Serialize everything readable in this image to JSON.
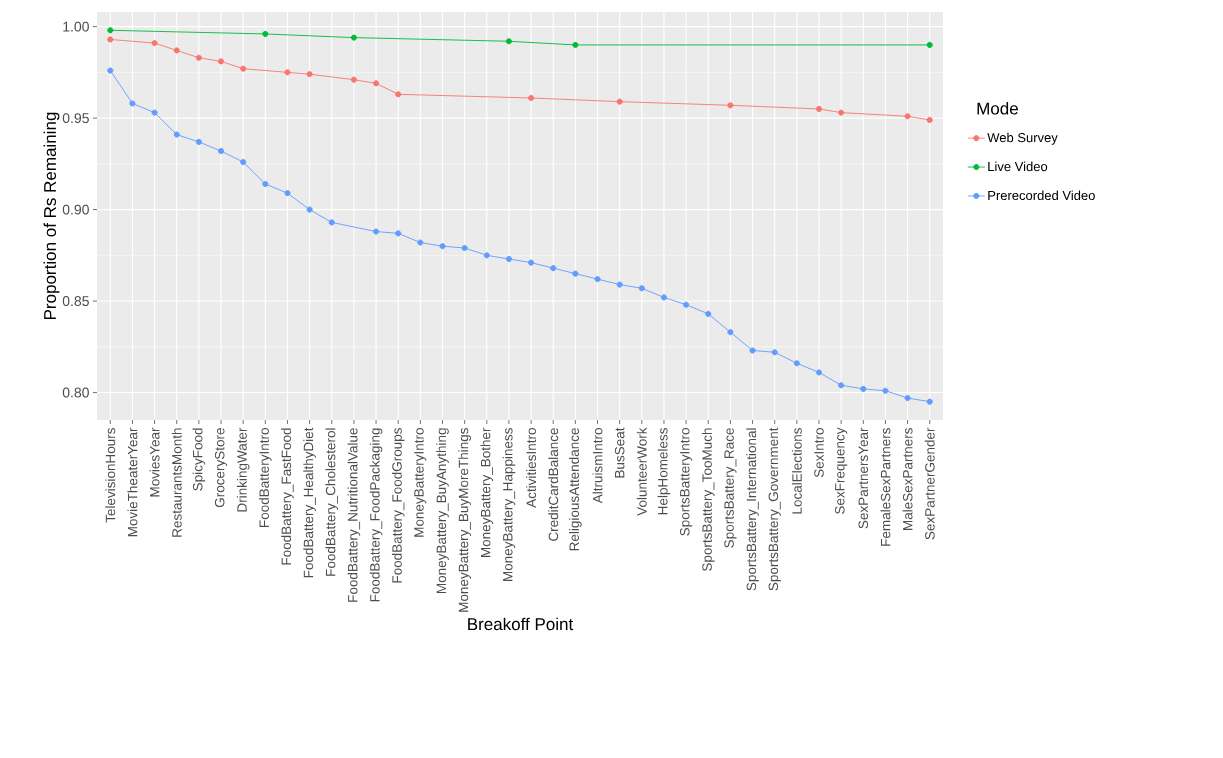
{
  "chart_data": {
    "type": "line",
    "xlabel": "Breakoff Point",
    "ylabel": "Proportion of Rs Remaining",
    "legend_title": "Mode",
    "categories": [
      "TelevisionHours",
      "MovieTheaterYear",
      "MoviesYear",
      "RestaurantsMonth",
      "SpicyFood",
      "GroceryStore",
      "DrinkingWater",
      "FoodBatteryIntro",
      "FoodBattery_FastFood",
      "FoodBattery_HealthyDiet",
      "FoodBattery_Cholesterol",
      "FoodBattery_NutritionalValue",
      "FoodBattery_FoodPackaging",
      "FoodBattery_FoodGroups",
      "MoneyBatteryIntro",
      "MoneyBattery_BuyAnything",
      "MoneyBattery_BuyMoreThings",
      "MoneyBattery_Bother",
      "MoneyBattery_Happiness",
      "ActivitiesIntro",
      "CreditCardBalance",
      "ReligiousAttendance",
      "AltruismIntro",
      "BusSeat",
      "VolunteerWork",
      "HelpHomeless",
      "SportsBatteryIntro",
      "SportsBattery_TooMuch",
      "SportsBattery_Race",
      "SportsBattery_International",
      "SportsBattery_Government",
      "LocalElections",
      "SexIntro",
      "SexFrequency",
      "SexPartnersYear",
      "FemaleSexPartners",
      "MaleSexPartners",
      "SexPartnerGender"
    ],
    "series": [
      {
        "name": "Web Survey",
        "color": "#f8766d",
        "values": [
          0.993,
          null,
          0.991,
          0.987,
          0.983,
          0.981,
          0.977,
          null,
          0.975,
          0.974,
          null,
          0.971,
          0.969,
          0.963,
          null,
          null,
          null,
          null,
          null,
          0.961,
          null,
          null,
          null,
          0.959,
          null,
          null,
          null,
          null,
          0.957,
          null,
          null,
          null,
          0.955,
          0.953,
          null,
          null,
          0.951,
          0.949
        ]
      },
      {
        "name": "Live Video",
        "color": "#00ba38",
        "values": [
          0.998,
          null,
          null,
          null,
          null,
          null,
          null,
          0.996,
          null,
          null,
          null,
          0.994,
          null,
          null,
          null,
          null,
          null,
          null,
          0.992,
          null,
          null,
          0.99,
          null,
          null,
          null,
          null,
          null,
          null,
          null,
          null,
          null,
          null,
          null,
          null,
          null,
          null,
          null,
          0.99
        ]
      },
      {
        "name": "Prerecorded Video",
        "color": "#619cff",
        "values": [
          0.976,
          0.958,
          0.953,
          0.941,
          0.937,
          0.932,
          0.926,
          0.914,
          0.909,
          0.9,
          0.893,
          null,
          0.888,
          0.887,
          0.882,
          0.88,
          0.879,
          0.875,
          0.873,
          0.871,
          0.868,
          0.865,
          0.862,
          0.859,
          0.857,
          0.852,
          0.848,
          0.843,
          0.833,
          0.823,
          0.822,
          0.816,
          0.811,
          0.804,
          0.802,
          0.801,
          0.797,
          0.795
        ]
      }
    ],
    "ylim": [
      0.785,
      1.008
    ],
    "yticks": [
      {
        "value": 0.8,
        "label": "0.80"
      },
      {
        "value": 0.85,
        "label": "0.85"
      },
      {
        "value": 0.9,
        "label": "0.90"
      },
      {
        "value": 0.95,
        "label": "0.95"
      },
      {
        "value": 1.0,
        "label": "1.00"
      }
    ],
    "grid": true,
    "legend": "right",
    "marker": "circle",
    "line_style": "solid"
  }
}
